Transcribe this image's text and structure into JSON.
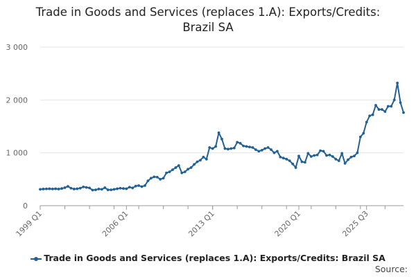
{
  "title_lines": [
    "Trade in Goods and Services (replaces 1.A): Exports/Credits:",
    "Brazil SA"
  ],
  "source_label": "Source:",
  "colors": {
    "series": "#206095",
    "grid": "#e5e5e5",
    "axis": "#999999",
    "text": "#666666"
  },
  "chart_data": {
    "type": "line",
    "title": "Trade in Goods and Services (replaces 1.A): Exports/Credits: Brazil SA",
    "xlabel": "",
    "ylabel": "",
    "ylim": [
      0,
      3000
    ],
    "yticks": [
      0,
      1000,
      2000,
      3000
    ],
    "ytick_labels": [
      "0",
      "1 000",
      "2 000",
      "3 000"
    ],
    "xtick_labels": [
      "1999 Q1",
      "2006 Q1",
      "2013 Q1",
      "2020 Q1",
      "2025 Q3"
    ],
    "x_start": "1999 Q1",
    "x_end": "2025 Q3",
    "grid": true,
    "legend_position": "bottom",
    "series": [
      {
        "name": "Trade in Goods and Services (replaces 1.A): Exports/Credits: Brazil SA",
        "values": [
          310,
          315,
          318,
          320,
          316,
          320,
          315,
          325,
          340,
          365,
          330,
          315,
          320,
          330,
          355,
          345,
          335,
          295,
          300,
          315,
          310,
          340,
          300,
          300,
          310,
          320,
          330,
          325,
          320,
          350,
          335,
          370,
          380,
          360,
          380,
          470,
          520,
          545,
          540,
          500,
          520,
          620,
          640,
          680,
          720,
          760,
          620,
          640,
          690,
          720,
          780,
          830,
          860,
          920,
          880,
          1100,
          1080,
          1120,
          1380,
          1260,
          1080,
          1070,
          1080,
          1090,
          1200,
          1180,
          1130,
          1120,
          1110,
          1100,
          1060,
          1030,
          1050,
          1080,
          1100,
          1060,
          1000,
          1030,
          920,
          900,
          880,
          850,
          790,
          720,
          940,
          830,
          820,
          990,
          930,
          950,
          960,
          1040,
          1030,
          950,
          960,
          930,
          880,
          850,
          990,
          800,
          870,
          920,
          940,
          1000,
          1300,
          1370,
          1580,
          1700,
          1720,
          1900,
          1820,
          1820,
          1780,
          1880,
          1880,
          2000,
          2320,
          1950,
          1760
        ]
      }
    ]
  }
}
